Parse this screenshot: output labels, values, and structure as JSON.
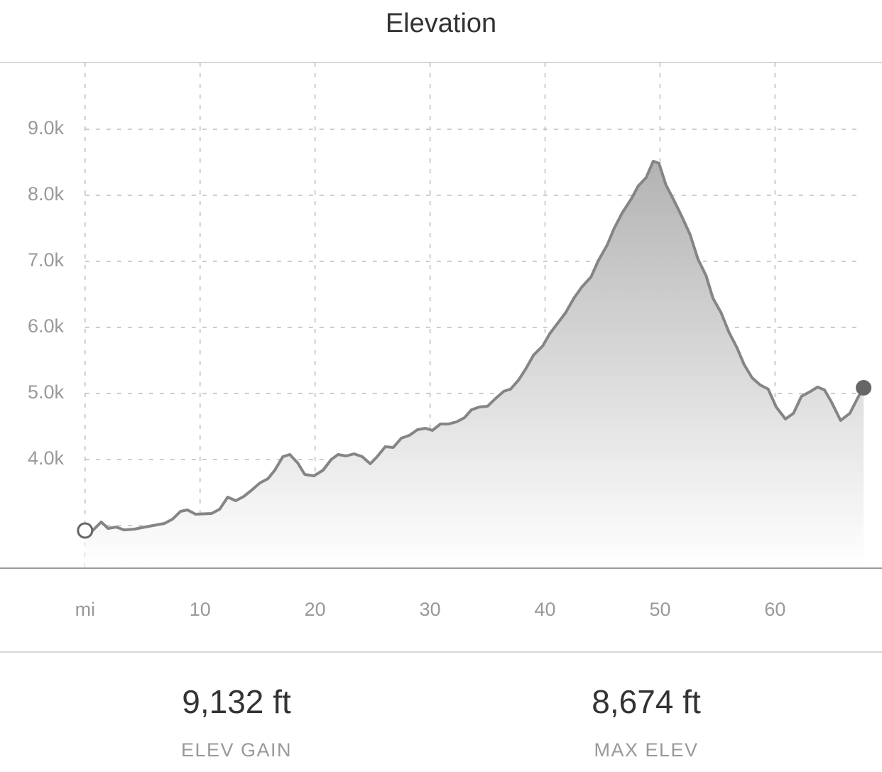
{
  "chart_data": {
    "type": "area",
    "title": "Elevation",
    "x": [
      0,
      0.6,
      1.4,
      2.0,
      2.7,
      3.4,
      4.3,
      4.9,
      5.9,
      6.9,
      7.6,
      8.3,
      8.9,
      9.6,
      11.0,
      11.7,
      12.4,
      13.1,
      13.8,
      14.5,
      15.2,
      15.9,
      16.5,
      17.2,
      17.8,
      18.5,
      19.1,
      19.9,
      20.7,
      21.4,
      22.0,
      22.7,
      23.4,
      24.1,
      24.8,
      25.4,
      26.1,
      26.8,
      27.5,
      28.2,
      28.9,
      29.6,
      30.2,
      30.9,
      31.6,
      32.3,
      33.0,
      33.6,
      34.3,
      35.0,
      35.7,
      36.4,
      37.0,
      37.7,
      38.3,
      39.0,
      39.8,
      40.4,
      41.1,
      41.8,
      42.5,
      43.2,
      44.0,
      44.6,
      45.4,
      46.0,
      46.7,
      47.5,
      48.1,
      48.8,
      49.4,
      49.9,
      50.5,
      51.2,
      51.9,
      52.6,
      53.3,
      54.0,
      54.6,
      55.3,
      56.0,
      56.7,
      57.3,
      58.0,
      58.7,
      59.4,
      60.1,
      60.9,
      61.6,
      62.3,
      63.0,
      63.7,
      64.3,
      64.9,
      65.7,
      66.5,
      67.2,
      67.7
    ],
    "values": [
      2925,
      2914,
      3054,
      2957,
      2978,
      2935,
      2946,
      2968,
      3000,
      3032,
      3097,
      3215,
      3237,
      3172,
      3183,
      3247,
      3430,
      3376,
      3441,
      3538,
      3645,
      3710,
      3839,
      4043,
      4075,
      3946,
      3774,
      3753,
      3839,
      4000,
      4075,
      4054,
      4086,
      4043,
      3935,
      4043,
      4194,
      4183,
      4323,
      4366,
      4452,
      4473,
      4441,
      4538,
      4538,
      4570,
      4634,
      4753,
      4796,
      4806,
      4925,
      5032,
      5065,
      5204,
      5366,
      5581,
      5720,
      5903,
      6065,
      6226,
      6441,
      6613,
      6764,
      7000,
      7247,
      7495,
      7731,
      7946,
      8140,
      8269,
      8516,
      8484,
      8161,
      7925,
      7677,
      7409,
      7032,
      6785,
      6441,
      6226,
      5925,
      5688,
      5441,
      5237,
      5129,
      5065,
      4796,
      4613,
      4699,
      4957,
      5022,
      5097,
      5054,
      4871,
      4591,
      4699,
      4935,
      5086
    ],
    "color": "#858585",
    "xlim": [
      -7.4,
      69.3
    ],
    "ylim": [
      2355,
      10010
    ],
    "xticks": [
      {
        "value": 0,
        "label": "mi"
      },
      10,
      20,
      30,
      40,
      50,
      60
    ],
    "yticks": [
      {
        "value": 4000,
        "label": "4.0k"
      },
      {
        "value": 5000,
        "label": "5.0k"
      },
      {
        "value": 6000,
        "label": "6.0k"
      },
      {
        "value": 7000,
        "label": "7.0k"
      },
      {
        "value": 8000,
        "label": "8.0k"
      },
      {
        "value": 9000,
        "label": "9.0k"
      }
    ],
    "ygrid": [
      3000,
      4000,
      5000,
      6000,
      7000,
      8000,
      9000
    ],
    "grid": true
  },
  "stats": [
    {
      "value": "9,132 ft",
      "label": "ELEV GAIN"
    },
    {
      "value": "8,674 ft",
      "label": "MAX ELEV"
    }
  ]
}
